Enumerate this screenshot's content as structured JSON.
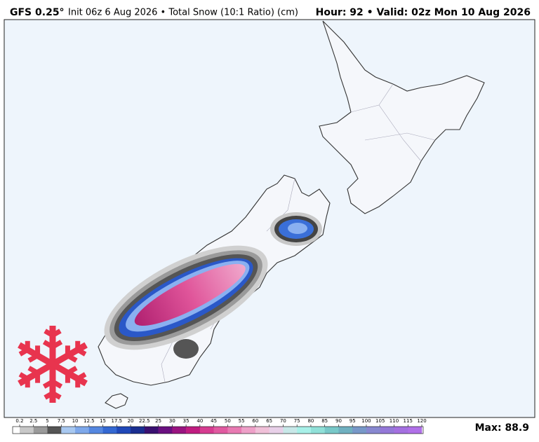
{
  "header": {
    "model": "GFS 0.25°",
    "description": "Init 06z 6 Aug 2026 • Total Snow (10:1 Ratio) (cm)",
    "valid": "Hour: 92 • Valid: 02z Mon 10 Aug 2026"
  },
  "colorbar": {
    "labels": [
      0.2,
      2.5,
      5,
      7.5,
      10,
      12.5,
      15,
      17.5,
      20,
      22.5,
      25,
      30,
      35,
      40,
      45,
      50,
      55,
      60,
      65,
      70,
      75,
      80,
      85,
      90,
      95,
      100,
      105,
      110,
      115,
      120
    ]
  },
  "max_label": "Max: 88.9"
}
